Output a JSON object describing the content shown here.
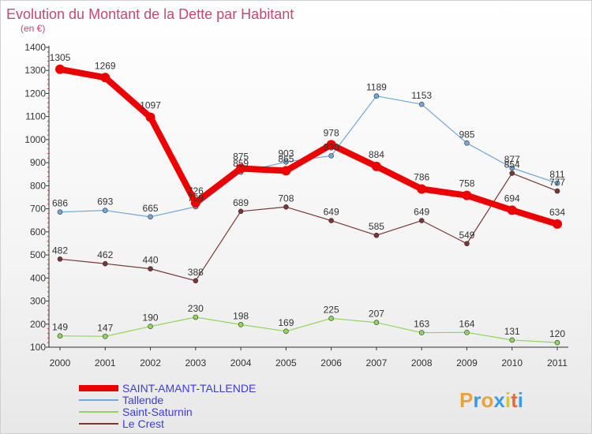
{
  "title": "Evolution du Montant de la Dette par Habitant",
  "subtitle": "(en €)",
  "logo": {
    "letters": [
      "P",
      "r",
      "o",
      "x",
      "i",
      "t",
      "i"
    ],
    "colors": [
      "#e8a33a",
      "#3a9be8",
      "#e8a33a",
      "#3a9be8",
      "#d8c33a",
      "#e86a3a",
      "#3a9be8"
    ]
  },
  "chart_data": {
    "type": "line",
    "title": "Evolution du Montant de la Dette par Habitant",
    "ylabel": "(en €)",
    "xlabel": "",
    "categories": [
      "2000",
      "2001",
      "2002",
      "2003",
      "2004",
      "2005",
      "2006",
      "2007",
      "2008",
      "2009",
      "2010",
      "2011"
    ],
    "ylim": [
      100,
      1400
    ],
    "yticks": [
      "100",
      "200",
      "300",
      "400",
      "500",
      "600",
      "700",
      "800",
      "900",
      "1000",
      "1100",
      "1200",
      "1300",
      "1400"
    ],
    "grid": false,
    "legend_position": "bottom-left",
    "series": [
      {
        "name": "SAINT-AMANT-TALLENDE",
        "color": "#ee0000",
        "values": [
          1305,
          1269,
          1097,
          726,
          875,
          865,
          978,
          884,
          786,
          758,
          694,
          634
        ],
        "labels": [
          "1305",
          "1269",
          "1097",
          "726",
          "875",
          "865",
          "978",
          "884",
          "786",
          "758",
          "694",
          "634"
        ]
      },
      {
        "name": "Tallende",
        "color": "#6fa8dc",
        "values": [
          686,
          693,
          665,
          709,
          859,
          903,
          930,
          1189,
          1153,
          985,
          877,
          811
        ],
        "labels": [
          "686",
          "693",
          "665",
          "709",
          "859",
          "903",
          "930",
          "1189",
          "1153",
          "985",
          "877",
          "811"
        ]
      },
      {
        "name": "Saint-Saturnin",
        "color": "#8fd65a",
        "values": [
          149,
          147,
          190,
          230,
          198,
          169,
          225,
          207,
          163,
          164,
          131,
          120
        ],
        "labels": [
          "149",
          "147",
          "190",
          "230",
          "198",
          "169",
          "225",
          "207",
          "163",
          "164",
          "131",
          "120"
        ]
      },
      {
        "name": "Le Crest",
        "color": "#7a3535",
        "values": [
          482,
          462,
          440,
          388,
          689,
          708,
          649,
          585,
          649,
          549,
          854,
          777
        ],
        "labels": [
          "482",
          "462",
          "440",
          "388",
          "689",
          "708",
          "649",
          "585",
          "649",
          "549",
          "854",
          "777"
        ]
      }
    ]
  }
}
